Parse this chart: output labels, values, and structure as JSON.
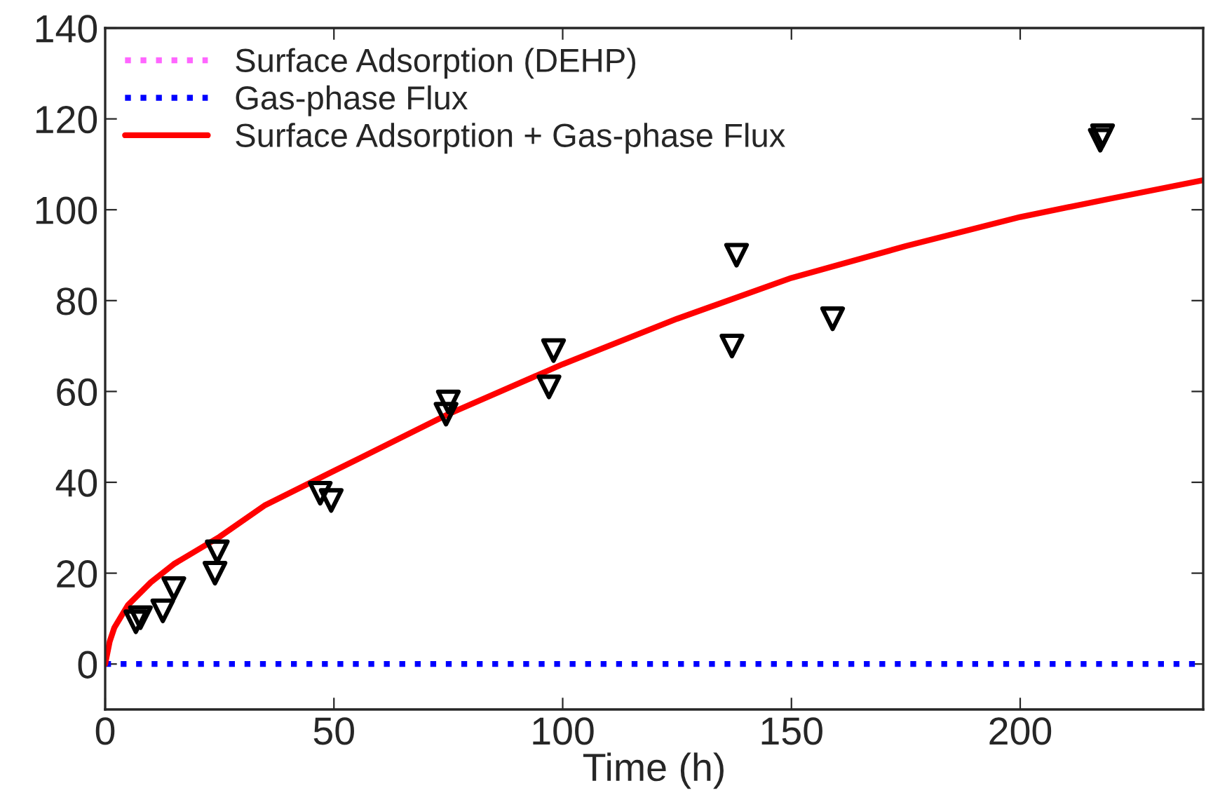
{
  "chart_data": {
    "type": "line",
    "xlabel": "Time (h)",
    "xlim": [
      0,
      240
    ],
    "ylim": [
      -10,
      140
    ],
    "xticks": [
      0,
      50,
      100,
      150,
      200
    ],
    "yticks": [
      0,
      20,
      40,
      60,
      80,
      100,
      120,
      140
    ],
    "grid": false,
    "legend": "top left",
    "series": [
      {
        "name": "Surface Adsorption (DEHP)",
        "type": "line",
        "color": "#ff66ff",
        "line_style": "dotted"
      },
      {
        "name": "Gas-phase Flux",
        "type": "line",
        "color": "#0000ff",
        "line_style": "dotted",
        "x": [
          0,
          240
        ],
        "values": [
          0,
          0
        ]
      },
      {
        "name": "Surface Adsorption + Gas-phase Flux",
        "color": "#ff0000",
        "line_style": "solid",
        "x": [
          0,
          1,
          2,
          5,
          10,
          15,
          25,
          35,
          50,
          75,
          100,
          125,
          150,
          175,
          200,
          220,
          240
        ],
        "values": [
          0,
          5,
          8,
          13,
          18,
          22,
          28,
          35,
          42.5,
          55,
          66,
          76,
          85,
          92,
          98.4,
          102.5,
          106.5
        ]
      },
      {
        "type": "scatter",
        "color": "#000000",
        "marker": "triangle",
        "x": [
          6.7,
          7.7,
          12.6,
          15,
          24,
          24.5,
          47,
          49.4,
          74.5,
          75,
          97,
          98,
          137,
          138,
          159,
          217.5,
          218
        ],
        "values": [
          9.3,
          10.2,
          11.7,
          16.6,
          20,
          24.7,
          37.6,
          36,
          55,
          57.7,
          61,
          69,
          70,
          90,
          76,
          115.3,
          116.3
        ]
      }
    ]
  }
}
